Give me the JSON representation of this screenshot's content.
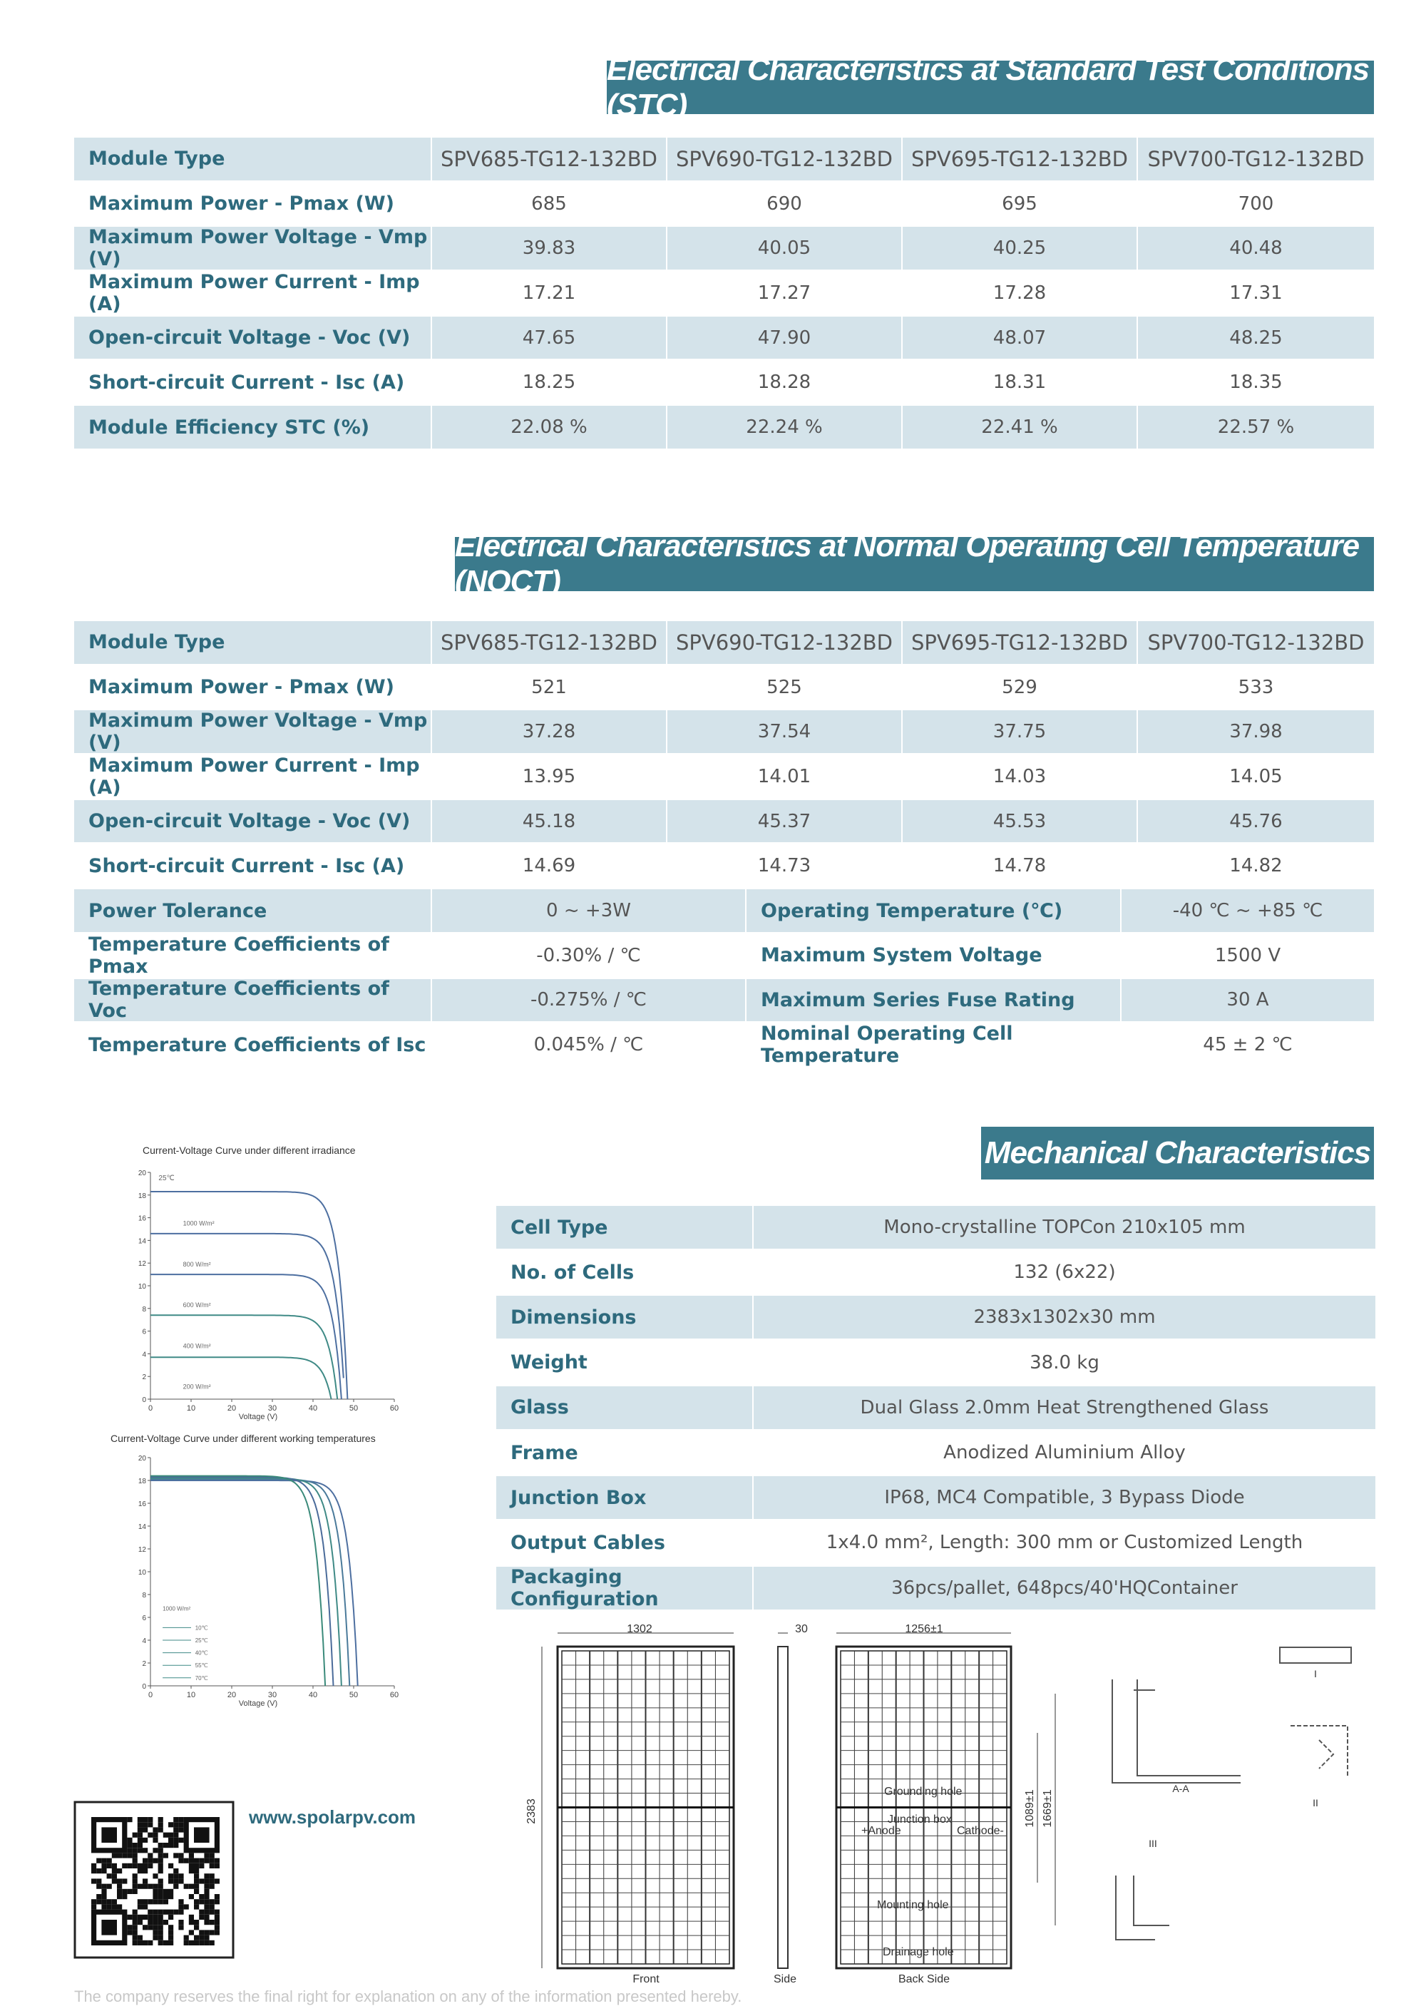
{
  "stc": {
    "title": "Electrical Characteristics at Standard Test Conditions (STC)",
    "header": [
      "Module Type",
      "SPV685-TG12-132BD",
      "SPV690-TG12-132BD",
      "SPV695-TG12-132BD",
      "SPV700-TG12-132BD"
    ],
    "rows": [
      [
        "Maximum Power - Pmax (W)",
        "685",
        "690",
        "695",
        "700"
      ],
      [
        "Maximum Power Voltage - Vmp (V)",
        "39.83",
        "40.05",
        "40.25",
        "40.48"
      ],
      [
        "Maximum Power Current - Imp (A)",
        "17.21",
        "17.27",
        "17.28",
        "17.31"
      ],
      [
        "Open-circuit Voltage - Voc (V)",
        "47.65",
        "47.90",
        "48.07",
        "48.25"
      ],
      [
        "Short-circuit Current - Isc (A)",
        "18.25",
        "18.28",
        "18.31",
        "18.35"
      ],
      [
        "Module Efficiency STC (%)",
        "22.08 %",
        "22.24 %",
        "22.41 %",
        "22.57 %"
      ]
    ]
  },
  "noct": {
    "title": "Electrical Characteristics at Normal Operating Cell Temperature (NOCT)",
    "header": [
      "Module Type",
      "SPV685-TG12-132BD",
      "SPV690-TG12-132BD",
      "SPV695-TG12-132BD",
      "SPV700-TG12-132BD"
    ],
    "rows": [
      [
        "Maximum Power - Pmax (W)",
        "521",
        "525",
        "529",
        "533"
      ],
      [
        "Maximum Power Voltage - Vmp (V)",
        "37.28",
        "37.54",
        "37.75",
        "37.98"
      ],
      [
        "Maximum Power Current - Imp (A)",
        "13.95",
        "14.01",
        "14.03",
        "14.05"
      ],
      [
        "Open-circuit Voltage - Voc (V)",
        "45.18",
        "45.37",
        "45.53",
        "45.76"
      ],
      [
        "Short-circuit Current - Isc (A)",
        "14.69",
        "14.73",
        "14.78",
        "14.82"
      ]
    ],
    "extra_rows": [
      [
        "Power Tolerance",
        "0 ~ +3W",
        "Operating Temperature (℃)",
        "-40 ℃ ~ +85 ℃"
      ],
      [
        "Temperature Coefficients of Pmax",
        "-0.30% / ℃",
        "Maximum System Voltage",
        "1500 V"
      ],
      [
        "Temperature Coefficients of Voc",
        "-0.275% / ℃",
        "Maximum Series Fuse Rating",
        "30 A"
      ],
      [
        "Temperature Coefficients of Isc",
        "0.045% / ℃",
        "Nominal Operating Cell Temperature",
        "45 ± 2 ℃"
      ]
    ]
  },
  "mechanical": {
    "title": "Mechanical Characteristics",
    "rows": [
      [
        "Cell Type",
        "Mono-crystalline TOPCon 210x105 mm"
      ],
      [
        "No. of Cells",
        "132 (6x22)"
      ],
      [
        "Dimensions",
        "2383x1302x30 mm"
      ],
      [
        "Weight",
        "38.0 kg"
      ],
      [
        "Glass",
        "Dual Glass 2.0mm Heat Strengthened Glass"
      ],
      [
        "Frame",
        "Anodized Aluminium Alloy"
      ],
      [
        "Junction Box",
        "IP68, MC4 Compatible, 3 Bypass Diode"
      ],
      [
        "Output Cables",
        "1x4.0 mm², Length: 300 mm or Customized Length"
      ],
      [
        "Packaging Configuration",
        "36pcs/pallet, 648pcs/40'HQContainer"
      ]
    ]
  },
  "charts": [
    {
      "title": "Current-Voltage Curve under different irradiance",
      "xlabel": "Voltage (V)",
      "xticks": [
        0,
        10,
        20,
        30,
        40,
        50,
        60
      ],
      "yticks": [
        0,
        2,
        4,
        6,
        8,
        10,
        12,
        14,
        16,
        18,
        20
      ],
      "labels": [
        "25℃",
        "1000 W/m²",
        "800 W/m²",
        "600 W/m²",
        "400 W/m²",
        "200 W/m²"
      ]
    },
    {
      "title": "Current-Voltage Curve under different working temperatures",
      "xlabel": "Voltage (V)",
      "xticks": [
        0,
        10,
        20,
        30,
        40,
        50,
        60
      ],
      "yticks": [
        0,
        2,
        4,
        6,
        8,
        10,
        12,
        14,
        16,
        18,
        20
      ],
      "labels": [
        "1000 W/m²",
        "10℃",
        "25℃",
        "40℃",
        "55℃",
        "70℃"
      ]
    }
  ],
  "website": "www.spolarpv.com",
  "footer": "The company reserves the final right for explanation on any of the information presented hereby.",
  "drawing": {
    "labels": [
      "1302",
      "30",
      "1256±1",
      "2383",
      "1089±1",
      "1669±1",
      "Grounding hole",
      "Junction box",
      "+Anode",
      "Cathode-",
      "Mounting hole",
      "Drainage hole",
      "Front",
      "Side",
      "Back Side",
      "A-A",
      "I",
      "II",
      "III"
    ]
  }
}
